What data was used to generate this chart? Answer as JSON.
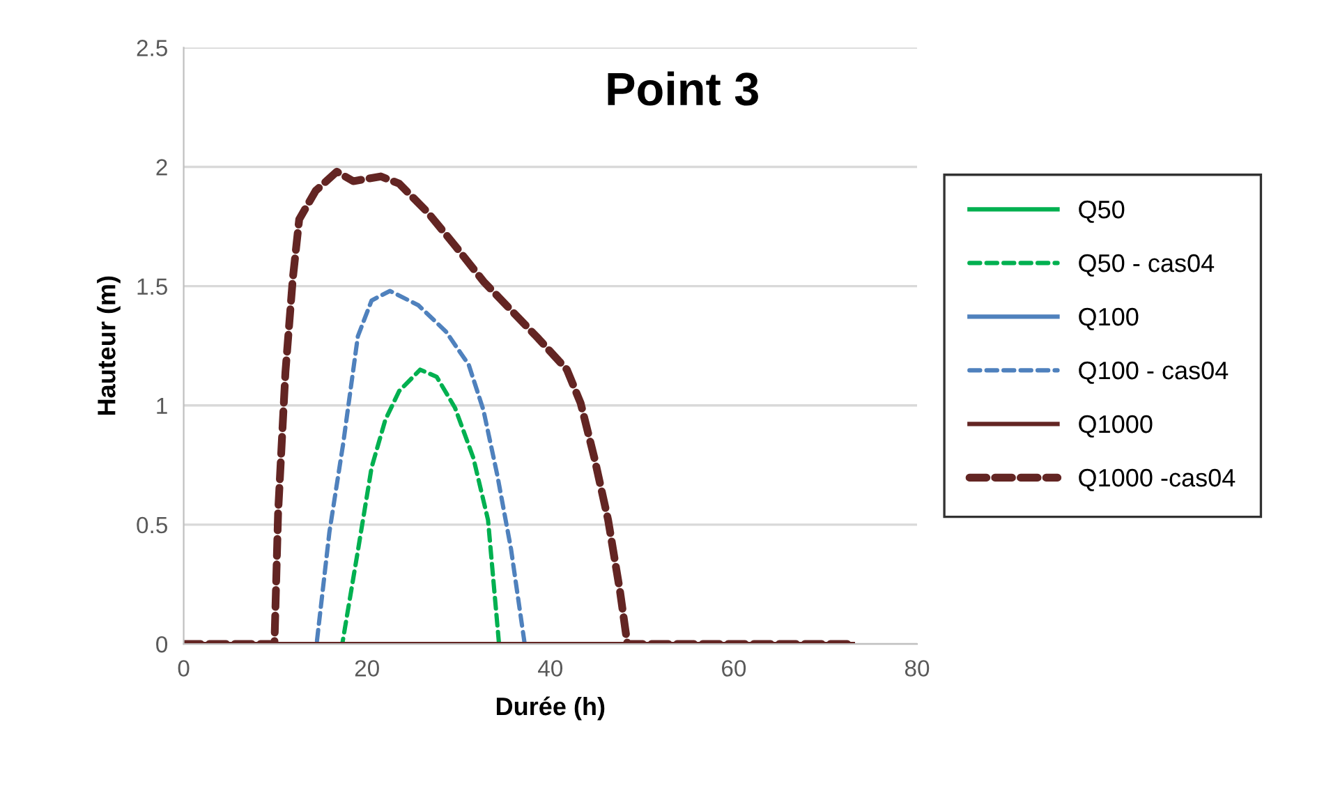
{
  "chart_data": {
    "type": "line",
    "title": "Point 3",
    "xlabel": "Durée (h)",
    "ylabel": "Hauteur (m)",
    "xlim": [
      0,
      80
    ],
    "xticks": [
      0,
      20,
      40,
      60,
      80
    ],
    "ylim": [
      0,
      2.5
    ],
    "yticks": [
      0,
      0.5,
      1,
      1.5,
      2,
      2.5
    ],
    "grid": "y",
    "legend": "right",
    "marker": "none",
    "series": [
      {
        "name": "Q50",
        "color": "#00b050",
        "line_style": "solid"
      },
      {
        "name": "Q50 - cas04",
        "color": "#00b050",
        "line_style": "dashed",
        "x": [
          0,
          17.3,
          19.0,
          20.5,
          22.0,
          23.5,
          25.8,
          27.6,
          29.6,
          31.6,
          33.2,
          34.4,
          73
        ],
        "values": [
          0,
          0,
          0.39,
          0.74,
          0.94,
          1.06,
          1.15,
          1.12,
          0.99,
          0.78,
          0.52,
          0,
          0
        ]
      },
      {
        "name": "Q100",
        "color": "#4f81bd",
        "line_style": "solid"
      },
      {
        "name": "Q100 - cas04",
        "color": "#4f81bd",
        "line_style": "dashed",
        "x": [
          0,
          14.5,
          15.9,
          17.4,
          19.0,
          20.5,
          22.5,
          25.6,
          28.6,
          31.1,
          32.7,
          34.2,
          35.7,
          37.2,
          73
        ],
        "values": [
          0,
          0,
          0.47,
          0.84,
          1.29,
          1.44,
          1.48,
          1.42,
          1.31,
          1.17,
          0.98,
          0.71,
          0.4,
          0,
          0
        ]
      },
      {
        "name": "Q1000",
        "color": "#632523",
        "line_style": "solid",
        "x": [
          0,
          73
        ],
        "values": [
          0,
          0
        ]
      },
      {
        "name": "Q1000 -cas04",
        "color": "#632523",
        "line_style": "dashed",
        "x": [
          0,
          9.9,
          10.3,
          11.1,
          11.9,
          12.6,
          14.4,
          16.7,
          18.5,
          21.5,
          23.5,
          26.6,
          29.6,
          32.7,
          35.7,
          38.7,
          41.8,
          43.3,
          44.8,
          46.3,
          47.6,
          48.4,
          73
        ],
        "values": [
          0,
          0,
          0.55,
          1.14,
          1.53,
          1.78,
          1.9,
          1.98,
          1.94,
          1.96,
          1.93,
          1.81,
          1.67,
          1.52,
          1.4,
          1.28,
          1.15,
          1.01,
          0.78,
          0.52,
          0.22,
          0,
          0
        ]
      }
    ]
  }
}
